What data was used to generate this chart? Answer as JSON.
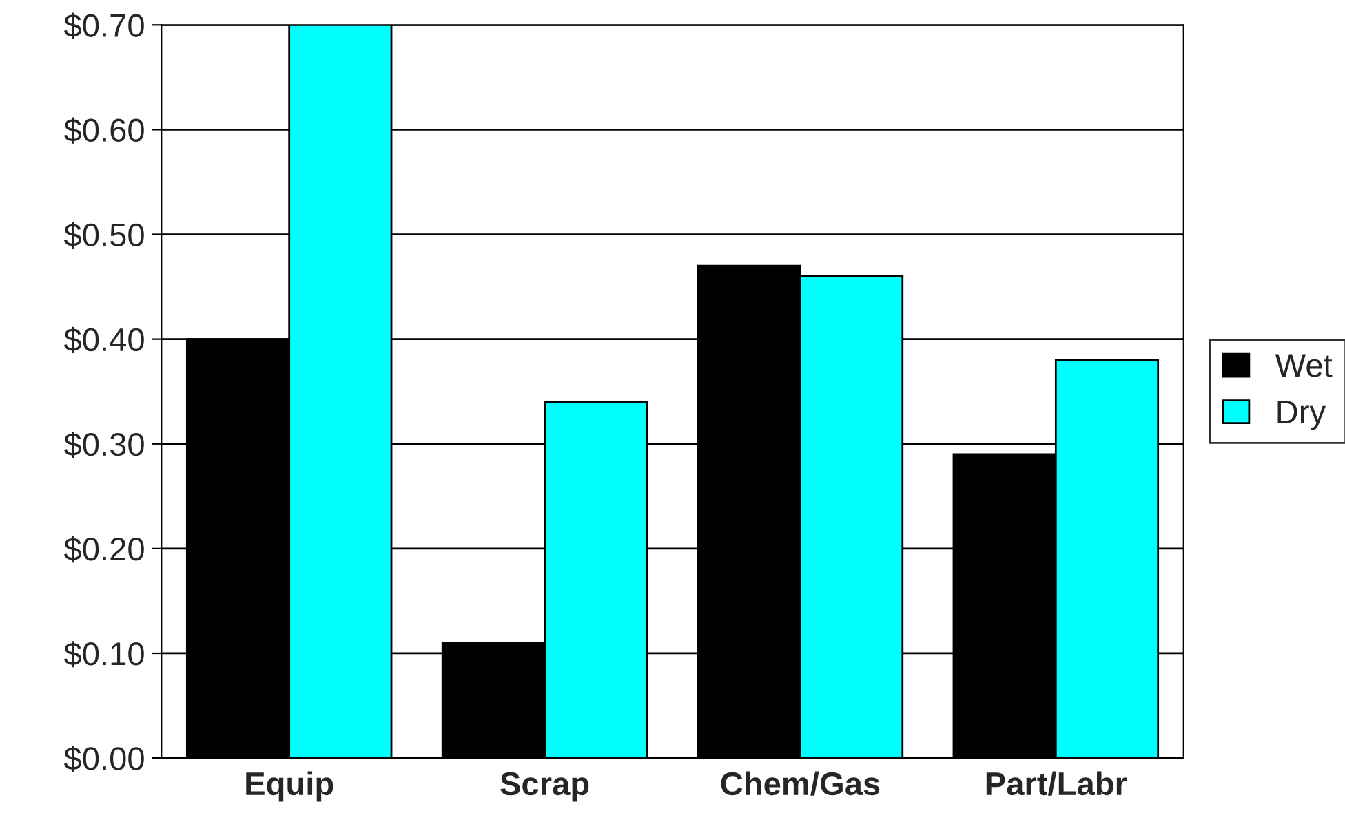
{
  "chart_data": {
    "type": "bar",
    "categories": [
      "Equip",
      "Scrap",
      "Chem/Gas",
      "Part/Labr"
    ],
    "series": [
      {
        "name": "Wet",
        "color": "#000000",
        "values": [
          0.4,
          0.11,
          0.47,
          0.29
        ]
      },
      {
        "name": "Dry",
        "color": "#00ffff",
        "values": [
          0.7,
          0.34,
          0.46,
          0.38
        ]
      }
    ],
    "ylim": [
      0,
      0.7
    ],
    "yticks": [
      {
        "value": 0,
        "label": "$0.00"
      },
      {
        "value": 0.1,
        "label": "$0.10"
      },
      {
        "value": 0.2,
        "label": "$0.20"
      },
      {
        "value": 0.3,
        "label": "$0.30"
      },
      {
        "value": 0.4,
        "label": "$0.40"
      },
      {
        "value": 0.5,
        "label": "$0.50"
      },
      {
        "value": 0.6,
        "label": "$0.60"
      },
      {
        "value": 0.7,
        "label": "$0.70"
      }
    ],
    "grid": "y",
    "legend": "right"
  }
}
